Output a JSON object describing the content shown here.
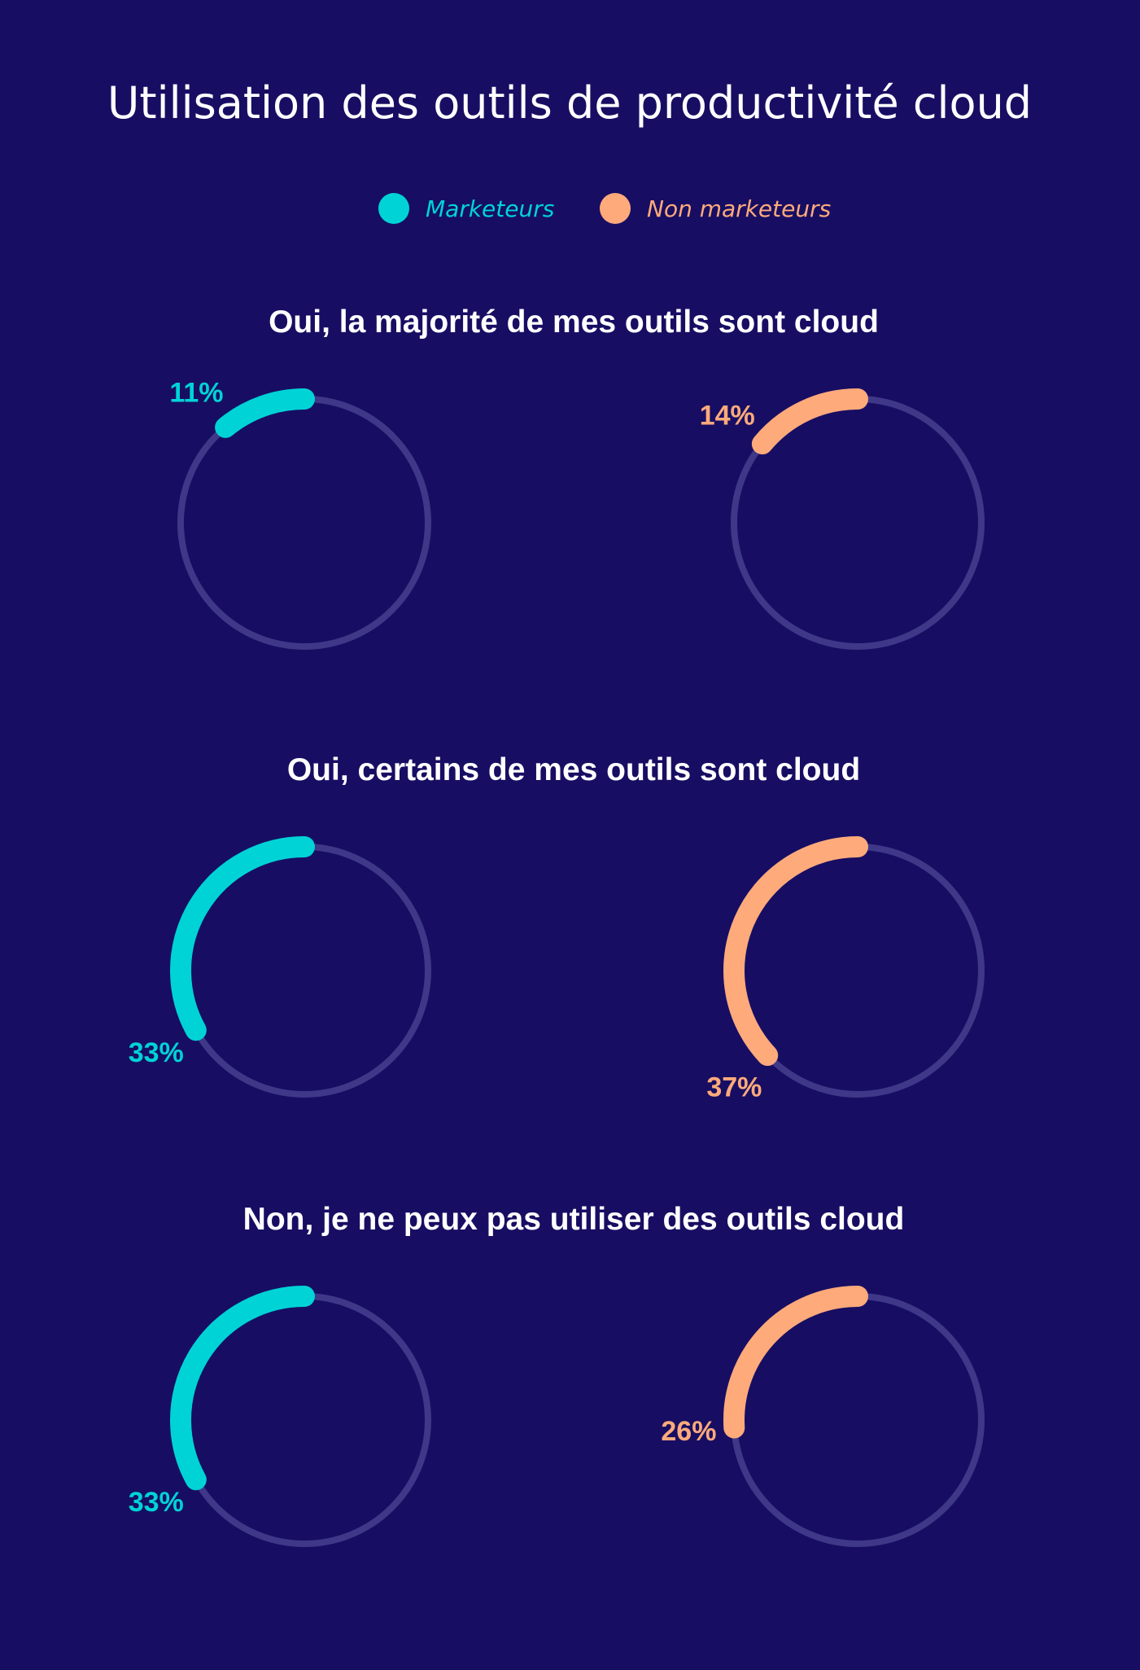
{
  "chart_data": {
    "type": "donut",
    "title": "Utilisation des outils de productivité cloud",
    "legend": [
      {
        "name": "Marketeurs",
        "color": "#00d3d6"
      },
      {
        "name": "Non marketeurs",
        "color": "#ffaa7b"
      }
    ],
    "track_color": "#3f3889",
    "sections": [
      {
        "title": "Oui, la majorité de mes outils sont cloud",
        "values": [
          {
            "series": "Marketeurs",
            "value": 11,
            "label": "11%"
          },
          {
            "series": "Non marketeurs",
            "value": 14,
            "label": "14%"
          }
        ]
      },
      {
        "title": "Oui, certains de mes outils sont cloud",
        "values": [
          {
            "series": "Marketeurs",
            "value": 33,
            "label": "33%"
          },
          {
            "series": "Non marketeurs",
            "value": 37,
            "label": "37%"
          }
        ]
      },
      {
        "title": "Non, je ne peux pas utiliser des outils cloud",
        "values": [
          {
            "series": "Marketeurs",
            "value": 33,
            "label": "33%"
          },
          {
            "series": "Non marketeurs",
            "value": 26,
            "label": "26%"
          }
        ]
      }
    ]
  }
}
